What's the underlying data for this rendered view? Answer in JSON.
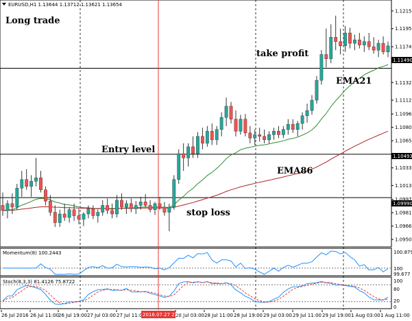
{
  "window": {
    "symbol_header": "EURUSD,H1  1.13644 1.13712 1.13621 1.13654"
  },
  "annotations": {
    "long_trade": "Long trade",
    "take_profit": "take profit",
    "entry_level": "Entry level",
    "stop_loss": "stop loss",
    "ema21": "EMA21",
    "ema86": "EMA86"
  },
  "price_axis": {
    "ticks": [
      "1.12155",
      "1.11950",
      "1.11740",
      "1.11585",
      "1.11325",
      "1.11120",
      "1.10960",
      "1.10805",
      "1.10650",
      "1.10335",
      "1.10130",
      "1.09970",
      "1.09815",
      "1.09660",
      "1.09505"
    ],
    "tp_label": "1.11490",
    "entry_label": "1.10493",
    "sl_label": "1.09990"
  },
  "time_axis": {
    "labels": [
      "26 Jul 2016",
      "26 Jul 11:00",
      "26 Jul 19:00",
      "27 Jul 03:00",
      "27 Jul 11:00",
      "2016.07.27 22:00",
      "28 Jul 03:00",
      "28 Jul 11:00",
      "28 Jul 19:00",
      "29 Jul 03:00",
      "29 Jul 11:00",
      "29 Jul 19:00",
      "1 Aug 03:00",
      "1 Aug 11:00"
    ],
    "cursor_label": "2016.07.27 22:00"
  },
  "momentum": {
    "title": "Momentum(8) 100.2443",
    "ticks": [
      "100.879",
      "100",
      "99.677"
    ]
  },
  "stochastic": {
    "title": "Stoch(8,3,3) 81.4126 75.8722",
    "ticks": [
      "100",
      "80",
      "20",
      "0"
    ]
  },
  "colors": {
    "bull": "#26a69a",
    "bear": "#ef5350",
    "ema21": "#2e8b2e",
    "ema86": "#b22222",
    "momentum_line": "#1e90ff",
    "stoch_main": "#1e90ff",
    "stoch_signal": "#e53935",
    "cursor": "#e53935"
  },
  "chart_data": {
    "type": "candlestick",
    "symbol": "EURUSD",
    "timeframe": "H1",
    "header_ohlc": [
      1.13644,
      1.13712,
      1.13621,
      1.13654
    ],
    "levels": {
      "take_profit": 1.1149,
      "entry": 1.10493,
      "stop_loss": 1.0999
    },
    "ylim": [
      1.0945,
      1.1225
    ],
    "candles_ohlc_approx": [
      [
        1.099,
        1.1005,
        1.0978,
        1.0984
      ],
      [
        1.0984,
        1.0996,
        1.0975,
        1.0992
      ],
      [
        1.0992,
        1.1004,
        1.098,
        1.0988
      ],
      [
        1.0988,
        1.1015,
        1.0985,
        1.101
      ],
      [
        1.101,
        1.103,
        1.1,
        1.102
      ],
      [
        1.102,
        1.1032,
        1.1008,
        1.1012
      ],
      [
        1.1012,
        1.1025,
        1.1,
        1.1018
      ],
      [
        1.1018,
        1.1045,
        1.1012,
        1.1022
      ],
      [
        1.1022,
        1.103,
        1.1005,
        1.1008
      ],
      [
        1.1008,
        1.1012,
        1.099,
        1.0995
      ],
      [
        1.0995,
        1.1002,
        1.0978,
        1.0982
      ],
      [
        1.0982,
        1.099,
        1.0965,
        1.097
      ],
      [
        1.097,
        1.0985,
        1.0965,
        1.098
      ],
      [
        1.098,
        1.0992,
        1.0972,
        1.0976
      ],
      [
        1.0976,
        1.0988,
        1.097,
        1.0985
      ],
      [
        1.0985,
        1.0992,
        1.0972,
        1.0978
      ],
      [
        1.0978,
        1.0986,
        1.0968,
        1.0974
      ],
      [
        1.0974,
        1.0982,
        1.0966,
        1.098
      ],
      [
        1.098,
        1.099,
        1.0975,
        1.0986
      ],
      [
        1.0986,
        1.099,
        1.0974,
        1.0978
      ],
      [
        1.0978,
        1.0985,
        1.097,
        1.0982
      ],
      [
        1.0982,
        1.0996,
        1.0978,
        1.099
      ],
      [
        1.099,
        1.0998,
        1.098,
        1.0984
      ],
      [
        1.0984,
        1.0992,
        1.0975,
        1.098
      ],
      [
        1.098,
        1.1002,
        1.0976,
        1.0996
      ],
      [
        1.0996,
        1.1004,
        1.0985,
        1.0988
      ],
      [
        1.0988,
        1.0996,
        1.098,
        1.0992
      ],
      [
        1.0992,
        1.0998,
        1.0982,
        1.0986
      ],
      [
        1.0986,
        1.0995,
        1.098,
        1.099
      ],
      [
        1.099,
        1.1,
        1.0985,
        1.0994
      ],
      [
        1.0994,
        1.1003,
        1.0988,
        1.099
      ],
      [
        1.099,
        1.0996,
        1.0982,
        1.0985
      ],
      [
        1.0985,
        1.0994,
        1.0979,
        1.0992
      ],
      [
        1.0992,
        1.1,
        1.0985,
        1.0988
      ],
      [
        1.0988,
        1.0994,
        1.0978,
        1.0982
      ],
      [
        1.0982,
        1.0992,
        1.096,
        1.0988
      ],
      [
        1.0988,
        1.1025,
        1.0985,
        1.102
      ],
      [
        1.102,
        1.1055,
        1.1015,
        1.105
      ],
      [
        1.105,
        1.1062,
        1.103,
        1.1045
      ],
      [
        1.1045,
        1.1062,
        1.1035,
        1.1058
      ],
      [
        1.1058,
        1.107,
        1.1045,
        1.105
      ],
      [
        1.105,
        1.1075,
        1.1045,
        1.107
      ],
      [
        1.107,
        1.108,
        1.1055,
        1.1062
      ],
      [
        1.1062,
        1.1082,
        1.1058,
        1.1076
      ],
      [
        1.1076,
        1.1085,
        1.106,
        1.1066
      ],
      [
        1.1066,
        1.1082,
        1.106,
        1.1078
      ],
      [
        1.1078,
        1.1098,
        1.107,
        1.1092
      ],
      [
        1.1092,
        1.1115,
        1.1082,
        1.1105
      ],
      [
        1.1105,
        1.111,
        1.1085,
        1.109
      ],
      [
        1.109,
        1.11,
        1.107,
        1.1076
      ],
      [
        1.1076,
        1.1095,
        1.1072,
        1.109
      ],
      [
        1.109,
        1.1096,
        1.107,
        1.1074
      ],
      [
        1.1074,
        1.1082,
        1.1062,
        1.1068
      ],
      [
        1.1068,
        1.1078,
        1.106,
        1.1072
      ],
      [
        1.1072,
        1.108,
        1.1064,
        1.107
      ],
      [
        1.107,
        1.1078,
        1.1062,
        1.1066
      ],
      [
        1.1066,
        1.1076,
        1.1062,
        1.1072
      ],
      [
        1.1072,
        1.108,
        1.1066,
        1.1076
      ],
      [
        1.1076,
        1.1082,
        1.1068,
        1.1072
      ],
      [
        1.1072,
        1.1082,
        1.1068,
        1.1078
      ],
      [
        1.1078,
        1.109,
        1.1072,
        1.1084
      ],
      [
        1.1084,
        1.109,
        1.1074,
        1.1078
      ],
      [
        1.1078,
        1.1088,
        1.107,
        1.1085
      ],
      [
        1.1085,
        1.1098,
        1.1078,
        1.1094
      ],
      [
        1.1094,
        1.1108,
        1.1086,
        1.11
      ],
      [
        1.11,
        1.1118,
        1.1095,
        1.1112
      ],
      [
        1.1112,
        1.114,
        1.1108,
        1.1135
      ],
      [
        1.1135,
        1.117,
        1.113,
        1.1165
      ],
      [
        1.1165,
        1.1195,
        1.115,
        1.116
      ],
      [
        1.116,
        1.12,
        1.1155,
        1.1185
      ],
      [
        1.1185,
        1.121,
        1.117,
        1.118
      ],
      [
        1.118,
        1.1195,
        1.1165,
        1.1175
      ],
      [
        1.1175,
        1.1198,
        1.1168,
        1.119
      ],
      [
        1.119,
        1.1196,
        1.1172,
        1.1178
      ],
      [
        1.1178,
        1.1188,
        1.117,
        1.1182
      ],
      [
        1.1182,
        1.119,
        1.1172,
        1.1176
      ],
      [
        1.1176,
        1.1186,
        1.1168,
        1.118
      ],
      [
        1.118,
        1.119,
        1.117,
        1.1174
      ],
      [
        1.1174,
        1.1185,
        1.1166,
        1.117
      ],
      [
        1.117,
        1.1182,
        1.1162,
        1.1178
      ],
      [
        1.1178,
        1.1186,
        1.1165,
        1.1168
      ],
      [
        1.1168,
        1.118,
        1.1162,
        1.1175
      ]
    ]
  }
}
